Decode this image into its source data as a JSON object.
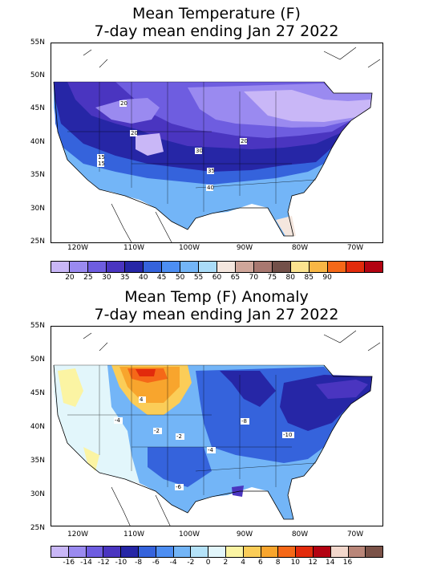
{
  "top_map": {
    "title_line1": "Mean Temperature (F)",
    "title_line2": "7-day mean ending Jan 27 2022",
    "lat_labels": [
      "55N",
      "50N",
      "45N",
      "40N",
      "35N",
      "30N",
      "25N"
    ],
    "lon_labels": [
      "120W",
      "110W",
      "100W",
      "90W",
      "80W",
      "70W"
    ],
    "contour_labels": [
      "20",
      "20",
      "20",
      "30",
      "15",
      "15",
      "35",
      "40"
    ],
    "colorbar": {
      "tick_labels": [
        "20",
        "25",
        "30",
        "35",
        "40",
        "45",
        "50",
        "55",
        "60",
        "65",
        "70",
        "75",
        "80",
        "85",
        "90"
      ],
      "colors": [
        "#c9b7f7",
        "#9a8af0",
        "#6e5de0",
        "#4a35c0",
        "#2626a6",
        "#3563dc",
        "#4d8ef2",
        "#73b5f7",
        "#aadcf8",
        "#f4e6de",
        "#cfa69a",
        "#a87870",
        "#735049",
        "#fbe38f",
        "#f8b645",
        "#f56818",
        "#e22b0c",
        "#b30312"
      ]
    }
  },
  "bottom_map": {
    "title_line1": "Mean Temp (F) Anomaly",
    "title_line2": "7-day mean ending Jan 27 2022",
    "lat_labels": [
      "55N",
      "50N",
      "45N",
      "40N",
      "35N",
      "30N",
      "25N"
    ],
    "lon_labels": [
      "120W",
      "110W",
      "100W",
      "90W",
      "80W",
      "70W"
    ],
    "contour_labels": [
      "4",
      "-4",
      "-2",
      "-2",
      "-8",
      "-4",
      "-10",
      "-6"
    ],
    "colorbar": {
      "tick_labels": [
        "-16",
        "-14",
        "-12",
        "-10",
        "-8",
        "-6",
        "-4",
        "-2",
        "0",
        "2",
        "4",
        "6",
        "8",
        "10",
        "12",
        "14",
        "16"
      ],
      "colors": [
        "#c9b7f7",
        "#9a8af0",
        "#6e5de0",
        "#4a35c0",
        "#2626a6",
        "#3563dc",
        "#4d8ef2",
        "#73b5f7",
        "#b4e2f8",
        "#e2f6fb",
        "#fbf4a3",
        "#fbcd58",
        "#f8a52d",
        "#f56818",
        "#e22b0c",
        "#b30312",
        "#f2d7cc",
        "#b98679",
        "#7b5248"
      ]
    }
  }
}
